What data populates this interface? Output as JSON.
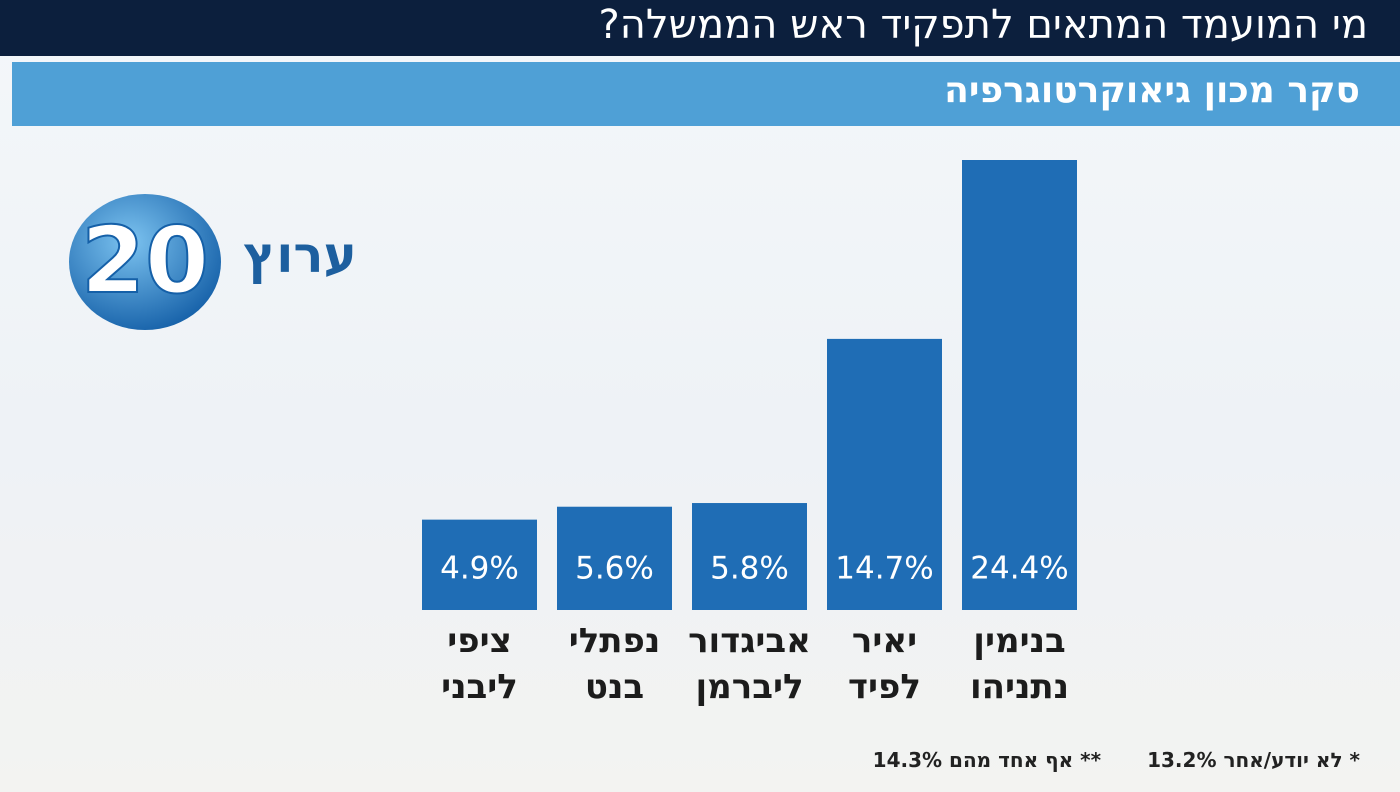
{
  "chart_data": {
    "type": "bar",
    "title": "מי המועמד המתאים לתפקיד ראש הממשלה?",
    "subtitle": "סקר מכון גיאוקרטוגרפיה",
    "categories": [
      "בנימין נתניהו",
      "יאיר לפיד",
      "אביגדור ליברמן",
      "נפתלי בנט",
      "ציפי ליבני"
    ],
    "values": [
      24.4,
      14.7,
      5.8,
      5.6,
      4.9
    ],
    "value_labels": [
      "24.4%",
      "14.7%",
      "5.8%",
      "5.6%",
      "4.9%"
    ],
    "color": "#1f6db5",
    "footnotes": [
      {
        "marker": "*",
        "label": "לא יודע/אחר",
        "value": "13.2%"
      },
      {
        "marker": "**",
        "label": "אף אחד מהם",
        "value": "14.3%"
      }
    ]
  },
  "logo": {
    "channel": "ערוץ",
    "number": "20"
  }
}
